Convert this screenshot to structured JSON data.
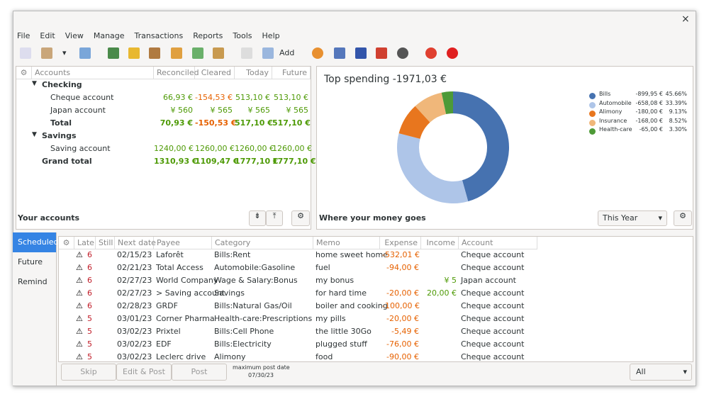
{
  "menu": [
    "File",
    "Edit",
    "View",
    "Manage",
    "Transactions",
    "Reports",
    "Tools",
    "Help"
  ],
  "toolbar": {
    "add": "Add"
  },
  "accounts": {
    "headers": [
      "Accounts",
      "Reconciled",
      "Cleared",
      "Today",
      "Future"
    ],
    "rows": [
      {
        "kind": "group",
        "name": "Checking"
      },
      {
        "kind": "account",
        "name": "Cheque account",
        "values": [
          "66,93 €",
          "-154,53 €",
          "513,10 €",
          "513,10 €"
        ]
      },
      {
        "kind": "account",
        "name": "Japan account",
        "values": [
          "¥ 560",
          "¥ 565",
          "¥ 565",
          "¥ 565"
        ]
      },
      {
        "kind": "total",
        "name": "Total",
        "values": [
          "70,93 €",
          "-150,53 €",
          "517,10 €",
          "517,10 €"
        ]
      },
      {
        "kind": "group",
        "name": "Savings"
      },
      {
        "kind": "account",
        "name": "Saving account",
        "values": [
          "1240,00 €",
          "1260,00 €",
          "1260,00 €",
          "1260,00 €"
        ]
      },
      {
        "kind": "grand",
        "name": "Grand total",
        "values": [
          "1310,93 €",
          "1109,47 €",
          "1777,10 €",
          "1777,10 €"
        ]
      }
    ],
    "footer": "Your accounts"
  },
  "spending": {
    "title": "Top spending -1971,03 €",
    "footer": "Where your money goes",
    "period": "This Year",
    "items": [
      {
        "name": "Bills",
        "amount": "-899,95 €",
        "value": 45.66,
        "value_label": "45.66%",
        "color": "#4672b0"
      },
      {
        "name": "Automobile",
        "amount": "-658,08 €",
        "value": 33.39,
        "value_label": "33.39%",
        "color": "#aec5e8"
      },
      {
        "name": "Alimony",
        "amount": "-180,00 €",
        "value": 9.13,
        "value_label": "9.13%",
        "color": "#e8761e"
      },
      {
        "name": "Insurance",
        "amount": "-168,00 €",
        "value": 8.52,
        "value_label": "8.52%",
        "color": "#f0b77a"
      },
      {
        "name": "Health-care",
        "amount": "-65,00 €",
        "value": 3.3,
        "value_label": "3.30%",
        "color": "#4d9a37"
      }
    ]
  },
  "tabs": [
    "Scheduled",
    "Future",
    "Remind"
  ],
  "scheduled": {
    "headers": [
      "Late",
      "Still",
      "Next date",
      "Payee",
      "Category",
      "Memo",
      "Expense",
      "Income",
      "Account"
    ],
    "rows": [
      {
        "late": "6",
        "date": "02/15/23",
        "payee": "Laforêt",
        "category": "Bills:Rent",
        "memo": "home sweet home",
        "expense": "-532,01 €",
        "account": "Cheque account"
      },
      {
        "late": "6",
        "date": "02/21/23",
        "payee": "Total Access",
        "category": "Automobile:Gasoline",
        "memo": "fuel",
        "expense": "-94,00 €",
        "account": "Cheque account"
      },
      {
        "late": "6",
        "date": "02/27/23",
        "payee": "World Company",
        "category": "Wage & Salary:Bonus",
        "memo": "my bonus",
        "income": "¥ 5",
        "account": "Japan account"
      },
      {
        "late": "6",
        "date": "02/27/23",
        "payee": "> Saving account",
        "category": "Savings",
        "memo": "for hard time",
        "expense": "-20,00 €",
        "income": "20,00 €",
        "account": "Cheque account"
      },
      {
        "late": "6",
        "date": "02/28/23",
        "payee": "GRDF",
        "category": "Bills:Natural Gas/Oil",
        "memo": "boiler and cooking",
        "expense": "-100,00 €",
        "account": "Cheque account"
      },
      {
        "late": "5",
        "date": "03/01/23",
        "payee": "Corner Pharma",
        "category": "Health-care:Prescriptions",
        "memo": "my pills",
        "expense": "-20,00 €",
        "account": "Cheque account"
      },
      {
        "late": "5",
        "date": "03/02/23",
        "payee": "Prixtel",
        "category": "Bills:Cell Phone",
        "memo": "the little 30Go",
        "expense": "-5,49 €",
        "account": "Cheque account"
      },
      {
        "late": "5",
        "date": "03/02/23",
        "payee": "EDF",
        "category": "Bills:Electricity",
        "memo": "plugged stuff",
        "expense": "-76,00 €",
        "account": "Cheque account"
      },
      {
        "late": "5",
        "date": "03/02/23",
        "payee": "Leclerc drive",
        "category": "Alimony",
        "memo": "food",
        "expense": "-90,00 €",
        "account": "Cheque account"
      }
    ],
    "buttons": [
      "Skip",
      "Edit & Post",
      "Post"
    ],
    "max_post_label": "maximum post date",
    "max_post_date": "07/30/23",
    "filter": "All"
  }
}
